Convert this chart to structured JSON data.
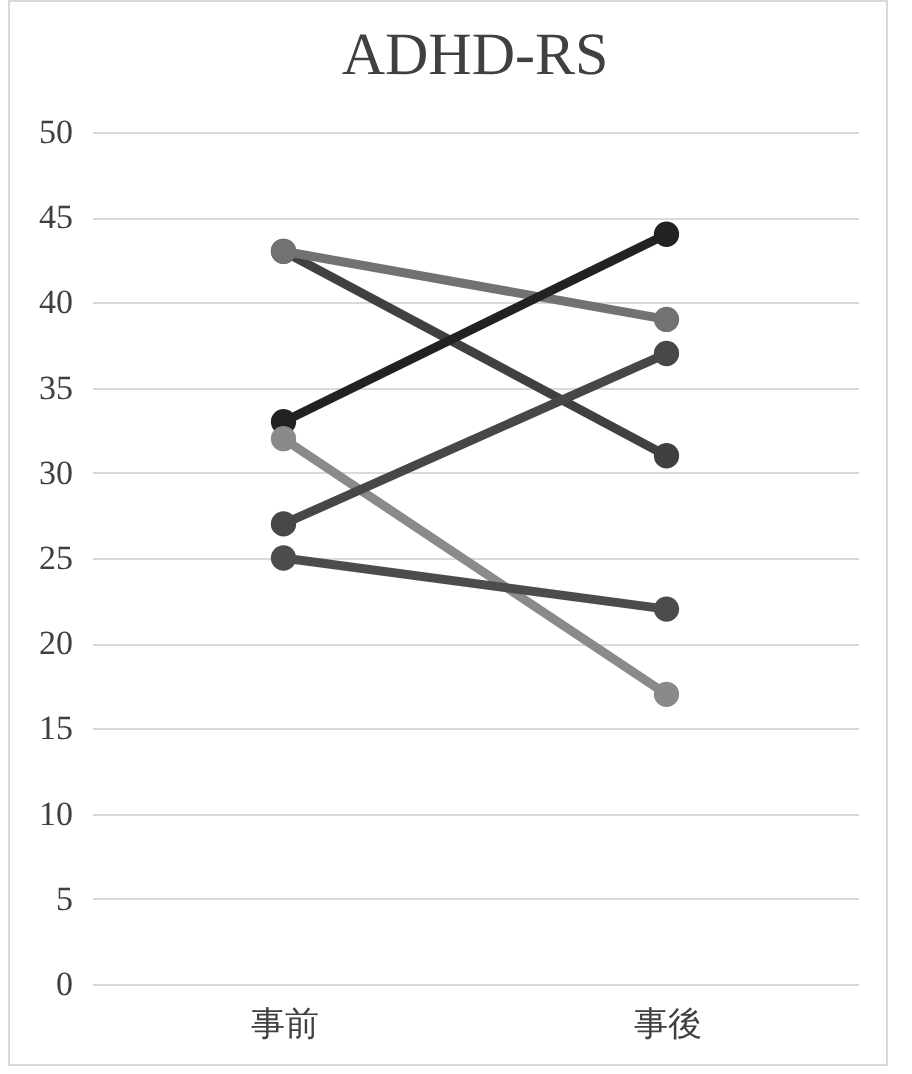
{
  "chart_data": {
    "type": "line",
    "title": "ADHD-RS",
    "categories": [
      "事前",
      "事後"
    ],
    "series": [
      {
        "color": "#404040",
        "values": [
          43,
          31
        ]
      },
      {
        "color": "#727272",
        "values": [
          43,
          39
        ]
      },
      {
        "color": "#222222",
        "values": [
          33,
          44
        ]
      },
      {
        "color": "#8a8a8a",
        "values": [
          32,
          17
        ]
      },
      {
        "color": "#474747",
        "values": [
          27,
          37
        ]
      },
      {
        "color": "#4c4c4c",
        "values": [
          25,
          22
        ]
      }
    ],
    "ylim": [
      0,
      50
    ],
    "yticks": [
      0,
      5,
      10,
      15,
      20,
      25,
      30,
      35,
      40,
      45,
      50
    ],
    "grid": "y",
    "legend": false,
    "marker": "circle",
    "line_style": "solid"
  }
}
